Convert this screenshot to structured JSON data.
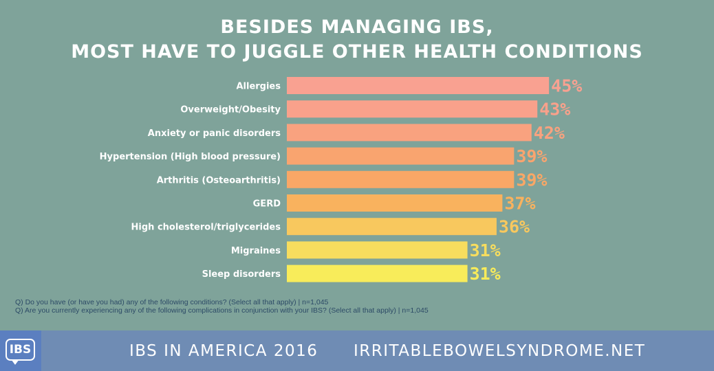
{
  "title_lines": [
    "BESIDES MANAGING IBS,",
    "MOST HAVE TO JUGGLE OTHER HEALTH CONDITIONS"
  ],
  "chart_data": {
    "type": "bar",
    "orientation": "horizontal",
    "title": "BESIDES MANAGING IBS, MOST HAVE TO JUGGLE OTHER HEALTH CONDITIONS",
    "categories": [
      "Allergies",
      "Overweight/Obesity",
      "Anxiety or panic disorders",
      "Hypertension (High blood pressure)",
      "Arthritis (Osteoarthritis)",
      "GERD",
      "High cholesterol/triglycerides",
      "Migraines",
      "Sleep disorders"
    ],
    "values": [
      45,
      43,
      42,
      39,
      39,
      37,
      36,
      31,
      31
    ],
    "value_labels": [
      "45%",
      "43%",
      "42%",
      "39%",
      "39%",
      "37%",
      "36%",
      "31%",
      "31%"
    ],
    "unit": "%",
    "xlabel": "",
    "ylabel": "",
    "grid": false,
    "legend": "none",
    "bar_colors": [
      "#f9a191",
      "#f9a18b",
      "#f9a27f",
      "#f9a46f",
      "#f9a766",
      "#f9b25e",
      "#f8c85e",
      "#f7dd5e",
      "#f8ec5a"
    ]
  },
  "notes": [
    "Q) Do you have (or have you had) any of the following conditions? (Select all that apply) | n=1,045",
    "Q) Are you currently experiencing any of the following complications in conjunction with your IBS? (Select all that apply) | n=1,045"
  ],
  "footer": {
    "logo_text": "IBS",
    "left_text": "IBS IN AMERICA 2016",
    "right_text": "IRRITABLEBOWELSYNDROME.NET"
  },
  "colors": {
    "background": "#7fa39a",
    "footer_background": "#6f8cb4",
    "logo_background": "#5b7fc0",
    "label_color": "#ffffff"
  }
}
